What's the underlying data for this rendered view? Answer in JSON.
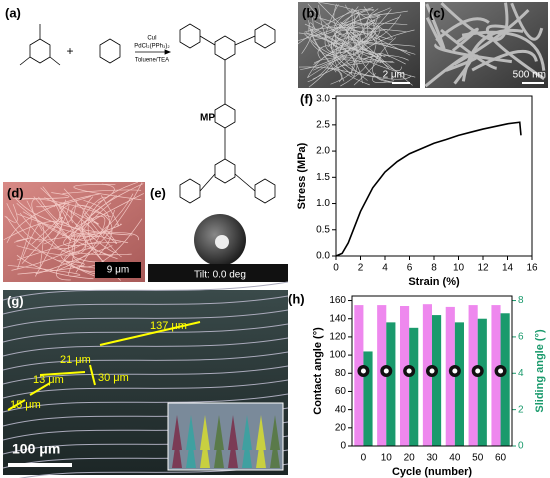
{
  "panels": {
    "a": {
      "label": "(a)",
      "plus": "+",
      "catalyst": "CuI",
      "reagent": "PdCl₂(PPh₃)₂",
      "solvent": "Toluene/TEA",
      "product": "MP"
    },
    "b": {
      "label": "(b)",
      "scale": "2 μm"
    },
    "c": {
      "label": "(c)",
      "scale": "500 nm"
    },
    "d": {
      "label": "(d)",
      "scale": "9 μm"
    },
    "e": {
      "label": "(e)",
      "tilt": "Tilt: 0.0 deg"
    },
    "f": {
      "label": "(f)"
    },
    "g": {
      "label": "(g)",
      "dims": [
        "137 μm",
        "21 μm",
        "30 μm",
        "13 μm",
        "15 μm"
      ],
      "scale": "100 μm"
    },
    "h": {
      "label": "(h)"
    }
  },
  "chart_data": [
    {
      "type": "line",
      "xlabel": "Strain (%)",
      "ylabel": "Stress (MPa)",
      "x": [
        0,
        0.5,
        1,
        1.5,
        2,
        3,
        4,
        5,
        6,
        7,
        8,
        9,
        10,
        11,
        12,
        13,
        14,
        15,
        15.1
      ],
      "series": [
        {
          "color": "#000000",
          "values": [
            0,
            0.05,
            0.25,
            0.55,
            0.85,
            1.3,
            1.6,
            1.8,
            1.95,
            2.05,
            2.15,
            2.22,
            2.3,
            2.36,
            2.42,
            2.47,
            2.52,
            2.55,
            2.3
          ]
        }
      ],
      "xlim": [
        0,
        16
      ],
      "xticks": [
        0,
        2,
        4,
        6,
        8,
        10,
        12,
        14,
        16
      ],
      "ylim": [
        0,
        3.05
      ],
      "yticks": [
        {
          "value": 0,
          "label": "0.0"
        },
        {
          "value": 0.5,
          "label": "0.5"
        },
        {
          "value": 1,
          "label": "1.0"
        },
        {
          "value": 1.5,
          "label": "1.5"
        },
        {
          "value": 2,
          "label": "2.0"
        },
        {
          "value": 2.5,
          "label": "2.5"
        },
        {
          "value": 3,
          "label": "3.0"
        }
      ]
    },
    {
      "type": "bar",
      "xlabel": "Cycle (number)",
      "ylabel": "Contact angle (°)",
      "y2label": "Sliding angle (°)",
      "categories": [
        "0",
        "10",
        "20",
        "30",
        "40",
        "50",
        "60"
      ],
      "series": [
        {
          "color": "#ee88ee",
          "values": [
            155,
            155,
            154,
            156,
            153,
            155,
            155
          ]
        },
        {
          "color": "#1a9a6c",
          "axis": "y2",
          "values": [
            5.2,
            6.8,
            6.5,
            7.2,
            6.8,
            7.0,
            7.3
          ]
        }
      ],
      "ylim": [
        0,
        165
      ],
      "yticks": [
        0,
        20,
        40,
        60,
        80,
        100,
        120,
        140,
        160
      ],
      "y2lim": [
        0,
        8.25
      ],
      "y2ticks": [
        0,
        2,
        4,
        6,
        8
      ]
    }
  ]
}
